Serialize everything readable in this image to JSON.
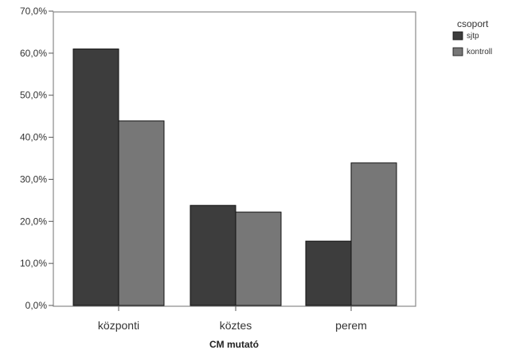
{
  "chart_data": {
    "type": "bar",
    "categories": [
      "központi",
      "köztes",
      "perem"
    ],
    "series": [
      {
        "name": "sjtp",
        "values": [
          61.0,
          23.8,
          15.3
        ],
        "color": "#3d3d3d"
      },
      {
        "name": "kontroll",
        "values": [
          43.9,
          22.2,
          33.9
        ],
        "color": "#777777"
      }
    ],
    "xlabel": "CM mutató",
    "ylabel": "",
    "ylim": [
      0,
      70
    ],
    "yticks": [
      "0,0%",
      "10,0%",
      "20,0%",
      "30,0%",
      "40,0%",
      "50,0%",
      "60,0%",
      "70,0%"
    ],
    "legend": {
      "title": "csoport",
      "placement": "top-right, outside plot"
    },
    "grid": false
  }
}
